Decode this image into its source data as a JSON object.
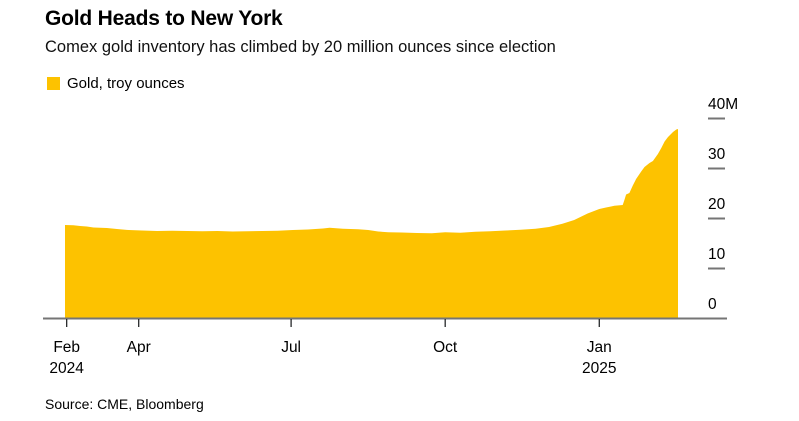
{
  "chart_data": {
    "type": "area",
    "title": "Gold Heads to New York",
    "subtitle": "Comex gold inventory has climbed by 20 million ounces since election",
    "source": "Source: CME, Bloomberg",
    "legend": {
      "position": "top-left",
      "items": [
        {
          "label": "Gold, troy ounces",
          "color": "#FDC200"
        }
      ]
    },
    "grid": false,
    "ylim": [
      0,
      40
    ],
    "x_domain": [
      "2024-02-17",
      "2025-02-17"
    ],
    "x_axis": {
      "ticks": [
        {
          "date": "2024-02-18",
          "label": "Feb",
          "sublabel": "2024"
        },
        {
          "date": "2024-04-01",
          "label": "Apr",
          "sublabel": ""
        },
        {
          "date": "2024-07-01",
          "label": "Jul",
          "sublabel": ""
        },
        {
          "date": "2024-10-01",
          "label": "Oct",
          "sublabel": ""
        },
        {
          "date": "2025-01-01",
          "label": "Jan",
          "sublabel": "2025"
        }
      ]
    },
    "y_axis": {
      "unit": "million troy ounces",
      "ticks": [
        {
          "value": 0,
          "label": "0"
        },
        {
          "value": 10,
          "label": "10"
        },
        {
          "value": 20,
          "label": "20"
        },
        {
          "value": 30,
          "label": "30"
        },
        {
          "value": 40,
          "label": "40M"
        }
      ]
    },
    "series": [
      {
        "name": "Gold, troy ounces",
        "color": "#FDC200",
        "points": [
          [
            "2024-02-17",
            18.6
          ],
          [
            "2024-02-22",
            18.55
          ],
          [
            "2024-02-26",
            18.4
          ],
          [
            "2024-03-01",
            18.3
          ],
          [
            "2024-03-05",
            18.1
          ],
          [
            "2024-03-09",
            18.05
          ],
          [
            "2024-03-13",
            18.0
          ],
          [
            "2024-03-19",
            17.8
          ],
          [
            "2024-03-26",
            17.6
          ],
          [
            "2024-04-03",
            17.5
          ],
          [
            "2024-04-12",
            17.4
          ],
          [
            "2024-04-21",
            17.45
          ],
          [
            "2024-04-30",
            17.4
          ],
          [
            "2024-05-09",
            17.35
          ],
          [
            "2024-05-18",
            17.4
          ],
          [
            "2024-05-27",
            17.3
          ],
          [
            "2024-06-05",
            17.35
          ],
          [
            "2024-06-14",
            17.4
          ],
          [
            "2024-06-23",
            17.45
          ],
          [
            "2024-07-02",
            17.6
          ],
          [
            "2024-07-11",
            17.7
          ],
          [
            "2024-07-20",
            17.9
          ],
          [
            "2024-07-24",
            18.05
          ],
          [
            "2024-08-01",
            17.85
          ],
          [
            "2024-08-10",
            17.75
          ],
          [
            "2024-08-16",
            17.6
          ],
          [
            "2024-08-22",
            17.3
          ],
          [
            "2024-08-28",
            17.15
          ],
          [
            "2024-09-05",
            17.1
          ],
          [
            "2024-09-14",
            17.0
          ],
          [
            "2024-09-23",
            16.95
          ],
          [
            "2024-10-01",
            17.15
          ],
          [
            "2024-10-10",
            17.05
          ],
          [
            "2024-10-19",
            17.25
          ],
          [
            "2024-10-28",
            17.35
          ],
          [
            "2024-11-06",
            17.5
          ],
          [
            "2024-11-15",
            17.65
          ],
          [
            "2024-11-24",
            17.85
          ],
          [
            "2024-12-02",
            18.2
          ],
          [
            "2024-12-10",
            18.85
          ],
          [
            "2024-12-17",
            19.6
          ],
          [
            "2024-12-25",
            20.9
          ],
          [
            "2025-01-01",
            21.8
          ],
          [
            "2025-01-05",
            22.1
          ],
          [
            "2025-01-08",
            22.3
          ],
          [
            "2025-01-10",
            22.45
          ],
          [
            "2025-01-15",
            22.6
          ],
          [
            "2025-01-16",
            23.6
          ],
          [
            "2025-01-17",
            24.7
          ],
          [
            "2025-01-19",
            25.0
          ],
          [
            "2025-01-21",
            26.5
          ],
          [
            "2025-01-23",
            27.8
          ],
          [
            "2025-01-26",
            29.3
          ],
          [
            "2025-01-28",
            30.2
          ],
          [
            "2025-01-31",
            31.0
          ],
          [
            "2025-02-02",
            31.4
          ],
          [
            "2025-02-05",
            32.8
          ],
          [
            "2025-02-07",
            34.0
          ],
          [
            "2025-02-09",
            35.3
          ],
          [
            "2025-02-11",
            36.2
          ],
          [
            "2025-02-14",
            37.2
          ],
          [
            "2025-02-16",
            37.7
          ],
          [
            "2025-02-17",
            37.8
          ]
        ]
      }
    ]
  },
  "colors": {
    "gold": "#FDC200",
    "axis_line": "#757575",
    "x_tick": "#26282a",
    "text": "#000000"
  }
}
